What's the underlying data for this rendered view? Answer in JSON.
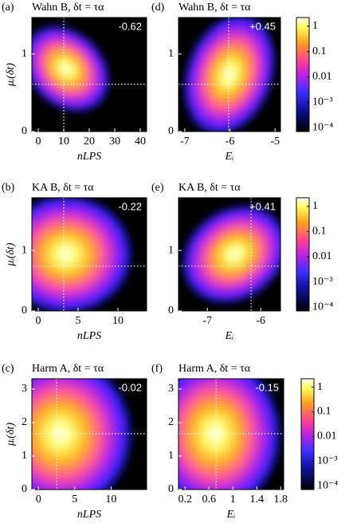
{
  "chart_data": [
    {
      "type": "heatmap",
      "panel": "(a)",
      "title": "Wahn B, δt = τα",
      "xlabel": "nLPS",
      "ylabel": "μᵢ(δt)",
      "annotation": "-0.62",
      "xlim": [
        -2.5,
        42.5
      ],
      "ylim": [
        0,
        1.47
      ],
      "xticks": [
        0,
        10,
        20,
        30,
        40
      ],
      "yticks": [
        0,
        1
      ],
      "vline": 10,
      "hline": 0.61
    },
    {
      "type": "heatmap",
      "panel": "(d)",
      "title": "Wahn B, δt = τα",
      "xlabel": "Eᵢ",
      "annotation": "+0.45",
      "xlim": [
        -7.14,
        -4.88
      ],
      "ylim": [
        0,
        1.47
      ],
      "xticks": [
        -7,
        -6,
        -5
      ],
      "yticks": [
        0,
        1
      ],
      "vline": -6.03,
      "hline": 0.61,
      "colorbar": {
        "log": true,
        "lim": [
          7e-05,
          2.2
        ],
        "ticks": [
          1,
          0.1,
          0.01,
          {
            "value": 0.001,
            "label": "10⁻³"
          },
          {
            "value": 0.0001,
            "label": "10⁻⁴"
          }
        ]
      }
    },
    {
      "type": "heatmap",
      "panel": "(b)",
      "title": "KA B, δt = τα",
      "xlabel": "nLPS",
      "ylabel": "μᵢ(δt)",
      "annotation": "-0.22",
      "xlim": [
        -0.8,
        13.6
      ],
      "ylim": [
        0,
        1.87
      ],
      "xticks": [
        0,
        5,
        10
      ],
      "yticks": [
        0,
        1
      ],
      "vline": 3.2,
      "hline": 0.74
    },
    {
      "type": "heatmap",
      "panel": "(e)",
      "title": "KA B, δt = τα",
      "xlabel": "Eᵢ",
      "annotation": "+0.41",
      "xlim": [
        -7.54,
        -5.63
      ],
      "ylim": [
        0,
        1.87
      ],
      "xticks": [
        -7,
        -6
      ],
      "yticks": [
        0,
        1
      ],
      "vline": -6.18,
      "hline": 0.74,
      "colorbar": {
        "log": true,
        "lim": [
          7e-05,
          2.2
        ],
        "ticks": [
          1,
          0.1,
          0.01,
          {
            "value": 0.001,
            "label": "10⁻³"
          },
          {
            "value": 0.0001,
            "label": "10⁻⁴"
          }
        ]
      }
    },
    {
      "type": "heatmap",
      "panel": "(c)",
      "title": "Harm A, δt = τα",
      "xlabel": "nLPS",
      "ylabel": "μᵢ(δt)",
      "annotation": "-0.02",
      "xlim": [
        -0.9,
        14.9
      ],
      "ylim": [
        0,
        3.31
      ],
      "xticks": [
        0,
        5,
        10
      ],
      "yticks": [
        0,
        1,
        2,
        3
      ],
      "vline": 2.5,
      "hline": 1.67
    },
    {
      "type": "heatmap",
      "panel": "(f)",
      "title": "Harm A, δt = τα",
      "xlabel": "Eᵢ",
      "annotation": "-0.15",
      "xlim": [
        0.09,
        1.85
      ],
      "ylim": [
        0,
        3.31
      ],
      "xticks": [
        0.2,
        0.6,
        1,
        1.4,
        1.8
      ],
      "yticks": [
        0,
        1,
        2,
        3
      ],
      "vline": 0.72,
      "hline": 1.67,
      "colorbar": {
        "log": true,
        "lim": [
          7e-05,
          2.2
        ],
        "ticks": [
          1,
          0.1,
          0.01,
          {
            "value": 0.001,
            "label": "10⁻³"
          },
          {
            "value": 0.0001,
            "label": "10⁻⁴"
          }
        ]
      }
    }
  ]
}
